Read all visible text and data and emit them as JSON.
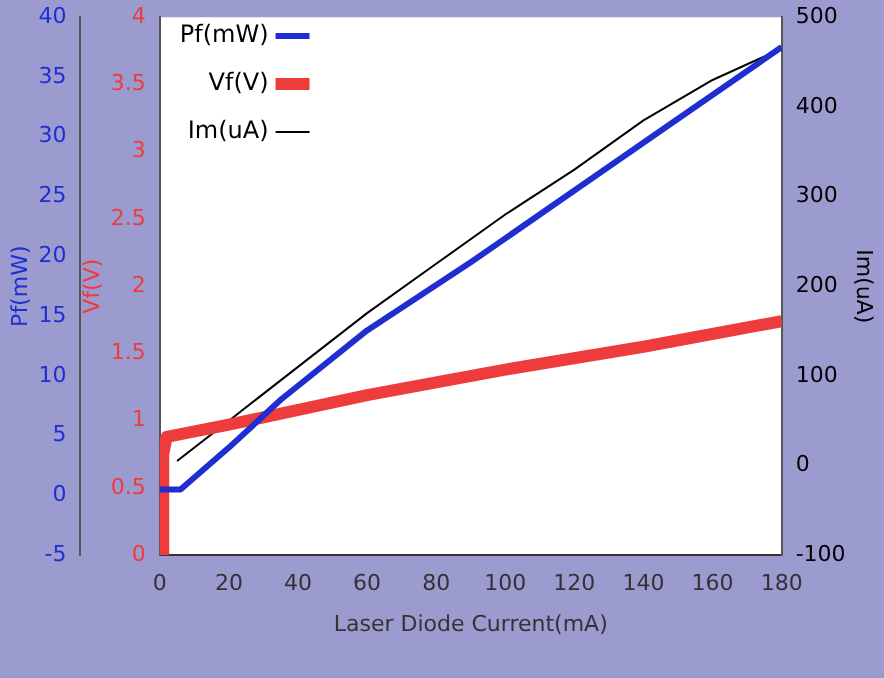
{
  "chart_data": {
    "type": "line",
    "xlabel": "Laser Diode Current(mA)",
    "ylabel": "Pf(mW)",
    "y2label": "Vf(V)",
    "y3label": "Im(uA)",
    "xlim": [
      0,
      180
    ],
    "xticks": [
      0,
      20,
      40,
      60,
      80,
      100,
      120,
      140,
      160,
      180
    ],
    "ylim": [
      -5,
      40
    ],
    "yticks": [
      -5,
      0,
      5,
      10,
      15,
      20,
      25,
      30,
      35,
      40
    ],
    "y2lim": [
      0,
      4
    ],
    "y2ticks": [
      0,
      0.5,
      1,
      1.5,
      2,
      2.5,
      3,
      3.5,
      4
    ],
    "y3lim": [
      -100,
      500
    ],
    "y3ticks": [
      -100,
      0,
      100,
      200,
      300,
      400,
      500
    ],
    "grid": false,
    "legend": "top left",
    "marker": "none",
    "line_style": "solid",
    "series": [
      {
        "name": "Pf(mW)",
        "color": "#1e2ed0",
        "axis": "y",
        "x": [
          0,
          6,
          20,
          35,
          60,
          90,
          120,
          150,
          180
        ],
        "values": [
          0.5,
          0.5,
          4,
          8,
          13.8,
          19.5,
          25.5,
          31.5,
          37.5
        ]
      },
      {
        "name": "Vf(V)",
        "color": "#ee3c3c",
        "axis": "y2",
        "x": [
          1,
          1,
          2,
          20,
          60,
          100,
          140,
          180
        ],
        "values": [
          0,
          0.75,
          0.88,
          0.97,
          1.19,
          1.38,
          1.55,
          1.74
        ]
      },
      {
        "name": "Im(uA)",
        "color": "#000000",
        "axis": "y3",
        "x": [
          5,
          20,
          40,
          60,
          80,
          100,
          120,
          140,
          160,
          180
        ],
        "values": [
          5,
          50,
          110,
          170,
          225,
          280,
          330,
          385,
          430,
          465
        ]
      }
    ]
  }
}
